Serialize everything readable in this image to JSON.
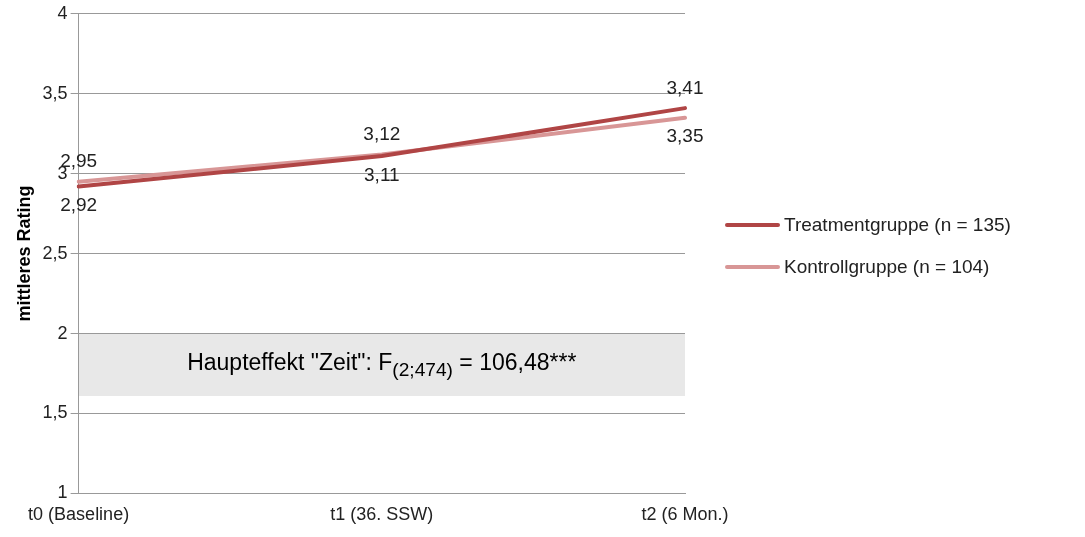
{
  "chart_data": {
    "type": "line",
    "ylabel": "mittleres Rating",
    "categories": [
      "t0 (Baseline)",
      "t1 (36. SSW)",
      "t2 (6 Mon.)"
    ],
    "series": [
      {
        "name": "Treatmentgruppe (n = 135)",
        "color": "#b04545",
        "values": [
          2.92,
          3.11,
          3.41
        ],
        "value_labels": [
          "2,92",
          "3,11",
          "3,41"
        ]
      },
      {
        "name": "Kontrollgruppe (n = 104)",
        "color": "#d89696",
        "values": [
          2.95,
          3.12,
          3.35
        ],
        "value_labels": [
          "2,95",
          "3,12",
          "3,35"
        ]
      }
    ],
    "ylim": [
      1,
      4
    ],
    "yticks": [
      1,
      {
        "value": 1.5,
        "label": "1,5"
      },
      2,
      {
        "value": 2.5,
        "label": "2,5"
      },
      3,
      {
        "value": 3.5,
        "label": "3,5"
      },
      4
    ],
    "grid": "y",
    "legend": "right",
    "marker": "none",
    "line_style": "solid",
    "annotations": [
      "Haupteffekt \"Zeit\": F$_{(2;474)}$ = 106,48***"
    ]
  }
}
